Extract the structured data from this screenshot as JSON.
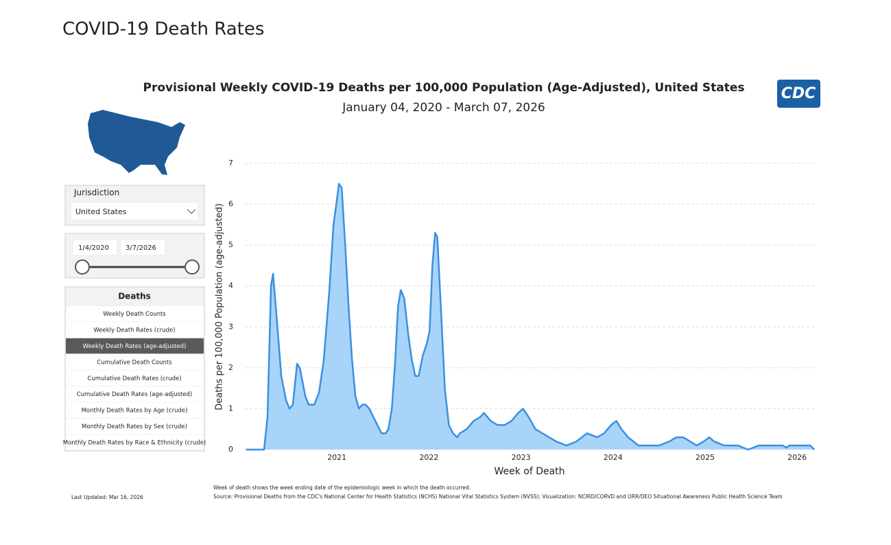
{
  "header": {
    "title": "COVID-19 Death Rates"
  },
  "filters": {
    "jurisdiction_label": "Jurisdiction",
    "jurisdiction_value": "United States",
    "date_start": "1/4/2020",
    "date_end": "3/7/2026"
  },
  "metric_menu": {
    "title": "Deaths",
    "selected": 2,
    "options": [
      "Weekly Death Counts",
      "Weekly Death Rates (crude)",
      "Weekly Death Rates (age-adjusted)",
      "Cumulative Death Counts",
      "Cumulative Death Rates (crude)",
      "Cumulative Death Rates (age-adjusted)",
      "Monthly Death Rates by Age (crude)",
      "Monthly Death Rates by Sex (crude)",
      "Monthly Death Rates by Race & Ethnicity (crude)"
    ]
  },
  "logo": "CDC",
  "last_updated": "Last Updated: Mar 16, 2026",
  "chart_data": {
    "type": "area",
    "title": "Provisional Weekly COVID-19 Deaths per 100,000 Population (Age-Adjusted), United States",
    "subtitle": "January 04, 2020 - March 07, 2026",
    "x_label": "Week of Death",
    "y_label": "Deaths per 100,000 Population (age-adjusted)",
    "color": "#3a8fe0",
    "fill": "#a8d4fa",
    "x": [
      2020.01,
      2020.209,
      2020.246,
      2020.284,
      2020.306,
      2020.343,
      2020.396,
      2020.448,
      2020.485,
      2020.522,
      2020.567,
      2020.597,
      2020.657,
      2020.694,
      2020.754,
      2020.806,
      2020.858,
      2020.918,
      2020.963,
      2020.993,
      2021.022,
      2021.052,
      2021.09,
      2021.127,
      2021.164,
      2021.201,
      2021.239,
      2021.276,
      2021.313,
      2021.351,
      2021.396,
      2021.44,
      2021.485,
      2021.53,
      2021.56,
      2021.597,
      2021.634,
      2021.664,
      2021.694,
      2021.731,
      2021.776,
      2021.813,
      2021.851,
      2021.888,
      2021.933,
      2021.978,
      2022.007,
      2022.037,
      2022.067,
      2022.09,
      2022.127,
      2022.172,
      2022.216,
      2022.261,
      2022.306,
      2022.336,
      2022.41,
      2022.485,
      2022.56,
      2022.597,
      2022.672,
      2022.746,
      2022.821,
      2022.896,
      2022.97,
      2023.022,
      2023.082,
      2023.157,
      2023.231,
      2023.306,
      2023.381,
      2023.493,
      2023.604,
      2023.716,
      2023.828,
      2023.903,
      2023.978,
      2024.037,
      2024.09,
      2024.164,
      2024.276,
      2024.5,
      2024.612,
      2024.687,
      2024.761,
      2024.836,
      2024.91,
      2024.985,
      2025.045,
      2025.097,
      2025.209,
      2025.358,
      2025.41,
      2025.47,
      2025.582,
      2025.843,
      2025.881,
      2025.918,
      2026.142,
      2026.187
    ],
    "values": [
      0,
      0,
      0.8,
      4.0,
      4.3,
      3.3,
      1.8,
      1.2,
      1.0,
      1.1,
      2.1,
      2.0,
      1.3,
      1.1,
      1.1,
      1.4,
      2.2,
      3.9,
      5.5,
      6.0,
      6.5,
      6.4,
      5.0,
      3.5,
      2.2,
      1.3,
      1.0,
      1.1,
      1.1,
      1.0,
      0.8,
      0.6,
      0.4,
      0.4,
      0.5,
      1.0,
      2.2,
      3.5,
      3.9,
      3.7,
      2.8,
      2.2,
      1.8,
      1.8,
      2.3,
      2.6,
      2.9,
      4.5,
      5.3,
      5.2,
      3.6,
      1.5,
      0.6,
      0.4,
      0.3,
      0.4,
      0.5,
      0.7,
      0.8,
      0.9,
      0.7,
      0.6,
      0.6,
      0.7,
      0.9,
      1.0,
      0.8,
      0.5,
      0.4,
      0.3,
      0.2,
      0.1,
      0.2,
      0.4,
      0.3,
      0.4,
      0.6,
      0.7,
      0.5,
      0.3,
      0.1,
      0.1,
      0.2,
      0.3,
      0.3,
      0.2,
      0.1,
      0.2,
      0.3,
      0.2,
      0.1,
      0.1,
      0.05,
      0,
      0.1,
      0.1,
      0.05,
      0.1,
      0.1,
      0
    ],
    "xlim": [
      2020,
      2026.2
    ],
    "xticks": [
      2021,
      2022,
      2023,
      2024,
      2025,
      2026
    ],
    "ylim": [
      0,
      7
    ],
    "yticks": [
      0,
      1,
      2,
      3,
      4,
      5,
      6,
      7
    ],
    "grid": true,
    "notes": [
      "Week of death shows the week ending date of the epidemiologic week in which the death occurred.",
      "Source: Provisional Deaths from the CDC's National Center for Health Statistics (NCHS) National Vital Statistics System (NVSS); Visualization: NCIRD/CORVD and ORR/DEO Situational Awareness Public Health Science Team"
    ]
  }
}
